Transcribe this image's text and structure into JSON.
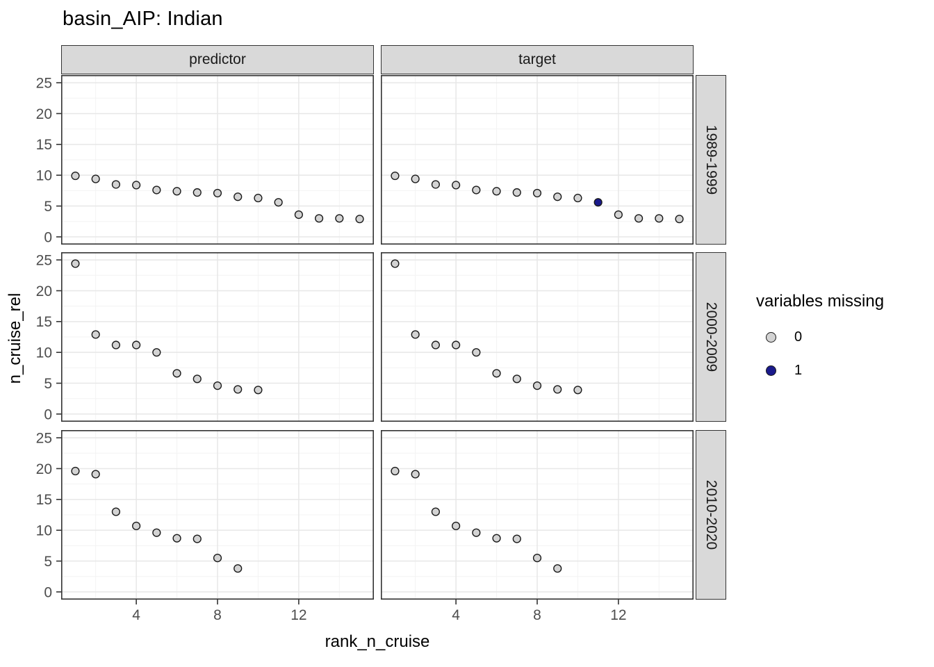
{
  "chart_data": {
    "type": "scatter",
    "title": "basin_AIP: Indian",
    "xlabel": "rank_n_cruise",
    "ylabel": "n_cruise_rel",
    "col_facets": [
      "predictor",
      "target"
    ],
    "row_facets": [
      "1989-1999",
      "2000-2009",
      "2010-2020"
    ],
    "x_ticks": [
      4,
      8,
      12
    ],
    "x_minor": [
      2,
      6,
      10,
      14
    ],
    "y_ticks": [
      25,
      20,
      15,
      10,
      5,
      0
    ],
    "y_minor": [
      2.5,
      7.5,
      12.5,
      17.5,
      22.5
    ],
    "xlim": [
      0.3,
      15.7
    ],
    "ylim": [
      -1.25,
      26.25
    ],
    "grid": true,
    "legend": {
      "title": "variables missing",
      "position": "right",
      "items": [
        {
          "label": "0",
          "color": "#d3d3d3"
        },
        {
          "label": "1",
          "color": "#1A1A8C"
        }
      ]
    },
    "point_format": [
      "rank_n_cruise",
      "n_cruise_rel",
      "variables_missing"
    ],
    "panels": [
      {
        "col": "predictor",
        "row": "1989-1999",
        "points": [
          [
            1,
            9.9,
            0
          ],
          [
            2,
            9.4,
            0
          ],
          [
            3,
            8.5,
            0
          ],
          [
            4,
            8.4,
            0
          ],
          [
            5,
            7.6,
            0
          ],
          [
            6,
            7.4,
            0
          ],
          [
            7,
            7.2,
            0
          ],
          [
            8,
            7.1,
            0
          ],
          [
            9,
            6.5,
            0
          ],
          [
            10,
            6.3,
            0
          ],
          [
            11,
            5.6,
            0
          ],
          [
            12,
            3.6,
            0
          ],
          [
            13,
            3.0,
            0
          ],
          [
            14,
            3.0,
            0
          ],
          [
            15,
            2.9,
            0
          ]
        ]
      },
      {
        "col": "target",
        "row": "1989-1999",
        "points": [
          [
            1,
            9.9,
            0
          ],
          [
            2,
            9.4,
            0
          ],
          [
            3,
            8.5,
            0
          ],
          [
            4,
            8.4,
            0
          ],
          [
            5,
            7.6,
            0
          ],
          [
            6,
            7.4,
            0
          ],
          [
            7,
            7.2,
            0
          ],
          [
            8,
            7.1,
            0
          ],
          [
            9,
            6.5,
            0
          ],
          [
            10,
            6.3,
            0
          ],
          [
            11,
            5.6,
            1
          ],
          [
            12,
            3.6,
            0
          ],
          [
            13,
            3.0,
            0
          ],
          [
            14,
            3.0,
            0
          ],
          [
            15,
            2.9,
            0
          ]
        ]
      },
      {
        "col": "predictor",
        "row": "2000-2009",
        "points": [
          [
            1,
            24.4,
            0
          ],
          [
            2,
            12.9,
            0
          ],
          [
            3,
            11.2,
            0
          ],
          [
            4,
            11.2,
            0
          ],
          [
            5,
            10.0,
            0
          ],
          [
            6,
            6.6,
            0
          ],
          [
            7,
            5.7,
            0
          ],
          [
            8,
            4.6,
            0
          ],
          [
            9,
            4.0,
            0
          ],
          [
            10,
            3.9,
            0
          ]
        ]
      },
      {
        "col": "target",
        "row": "2000-2009",
        "points": [
          [
            1,
            24.4,
            0
          ],
          [
            2,
            12.9,
            0
          ],
          [
            3,
            11.2,
            0
          ],
          [
            4,
            11.2,
            0
          ],
          [
            5,
            10.0,
            0
          ],
          [
            6,
            6.6,
            0
          ],
          [
            7,
            5.7,
            0
          ],
          [
            8,
            4.6,
            0
          ],
          [
            9,
            4.0,
            0
          ],
          [
            10,
            3.9,
            0
          ]
        ]
      },
      {
        "col": "predictor",
        "row": "2010-2020",
        "points": [
          [
            1,
            19.6,
            0
          ],
          [
            2,
            19.1,
            0
          ],
          [
            3,
            13.0,
            0
          ],
          [
            4,
            10.7,
            0
          ],
          [
            5,
            9.6,
            0
          ],
          [
            6,
            8.7,
            0
          ],
          [
            7,
            8.6,
            0
          ],
          [
            8,
            5.5,
            0
          ],
          [
            9,
            3.8,
            0
          ]
        ]
      },
      {
        "col": "target",
        "row": "2010-2020",
        "points": [
          [
            1,
            19.6,
            0
          ],
          [
            2,
            19.1,
            0
          ],
          [
            3,
            13.0,
            0
          ],
          [
            4,
            10.7,
            0
          ],
          [
            5,
            9.6,
            0
          ],
          [
            6,
            8.7,
            0
          ],
          [
            7,
            8.6,
            0
          ],
          [
            8,
            5.5,
            0
          ],
          [
            9,
            3.8,
            0
          ]
        ]
      }
    ],
    "style": {
      "panel_border": "#333333",
      "strip_fill": "#d9d9d9",
      "grid_major": "#e7e7e7",
      "grid_minor": "#f3f3f3",
      "tick_color": "#333333",
      "tick_label_color": "#4d4d4d",
      "point_stroke": "#1a1a1a"
    }
  }
}
